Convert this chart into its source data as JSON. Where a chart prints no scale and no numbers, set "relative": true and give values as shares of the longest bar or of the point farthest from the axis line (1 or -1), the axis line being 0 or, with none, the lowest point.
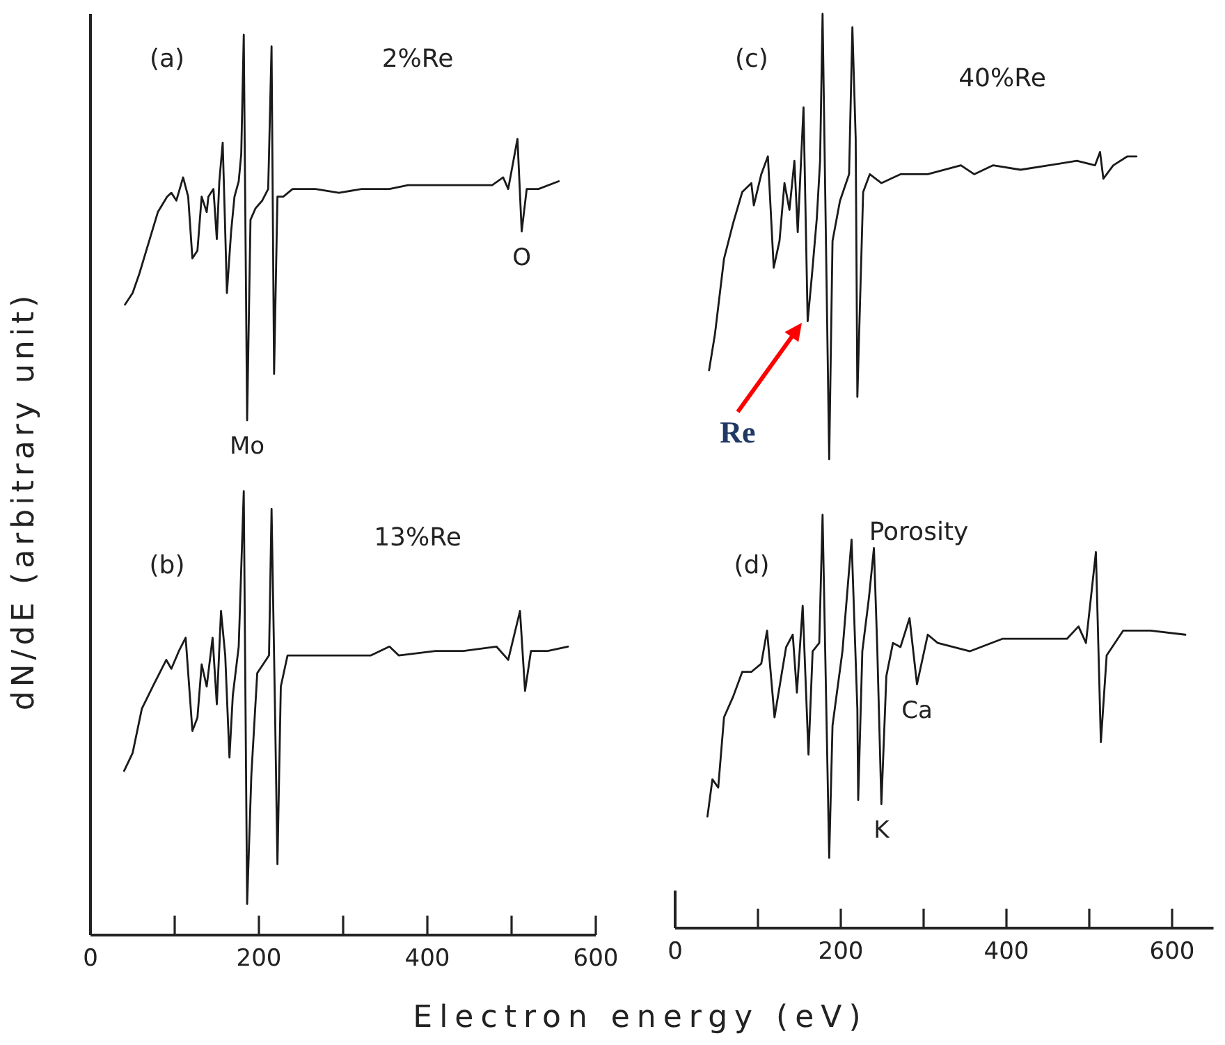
{
  "chart_data": [
    {
      "type": "line",
      "title": "(a)",
      "subtitle": "2%Re",
      "ylabel": "dN/dE (arbitrary unit)",
      "relative": true,
      "xlim": [
        0,
        600
      ],
      "tick_labels": false,
      "color": "#1a1a1a",
      "x": [
        41,
        50,
        58,
        69,
        80,
        91,
        96,
        102,
        110,
        116,
        121,
        127,
        132,
        138,
        140,
        146,
        150,
        153,
        157,
        160,
        162,
        167,
        171,
        176,
        179,
        182,
        186,
        190,
        196,
        204,
        211,
        212,
        215,
        218,
        222,
        229,
        240,
        267,
        295,
        322,
        355,
        377,
        432,
        477,
        490,
        496,
        507,
        512,
        518,
        532,
        556
      ],
      "values": [
        0.3,
        0.33,
        0.38,
        0.46,
        0.54,
        0.58,
        0.59,
        0.57,
        0.63,
        0.58,
        0.42,
        0.44,
        0.58,
        0.54,
        0.58,
        0.6,
        0.47,
        0.62,
        0.72,
        0.49,
        0.33,
        0.49,
        0.58,
        0.62,
        0.69,
        1,
        0,
        0.52,
        0.55,
        0.57,
        0.6,
        0.69,
        0.97,
        0.12,
        0.58,
        0.58,
        0.6,
        0.6,
        0.59,
        0.6,
        0.6,
        0.61,
        0.61,
        0.61,
        0.63,
        0.6,
        0.73,
        0.49,
        0.6,
        0.6,
        0.62
      ],
      "annotations": [
        {
          "text": "Mo",
          "x": 186,
          "y": 0
        },
        {
          "text": "O",
          "x": 512,
          "y": 0.49
        }
      ]
    },
    {
      "type": "line",
      "title": "(b)",
      "subtitle": "13%Re",
      "xlabel": "Electron energy (eV)",
      "relative": true,
      "xlim": [
        0,
        600
      ],
      "xticks": [
        0,
        {
          "value": 100,
          "label": null
        },
        200,
        {
          "value": 300,
          "label": null
        },
        400,
        {
          "value": 500,
          "label": null
        },
        600
      ],
      "color": "#1a1a1a",
      "x": [
        40,
        50,
        61,
        74,
        90,
        96,
        105,
        113,
        121,
        127,
        132,
        138,
        145,
        150,
        155,
        160,
        165,
        169,
        176,
        182,
        186,
        191,
        198,
        212,
        215,
        219,
        222,
        226,
        234,
        267,
        300,
        333,
        355,
        366,
        410,
        443,
        482,
        496,
        510,
        516,
        523,
        543,
        567
      ],
      "values": [
        0.37,
        0.41,
        0.51,
        0.56,
        0.62,
        0.6,
        0.64,
        0.67,
        0.46,
        0.49,
        0.61,
        0.56,
        0.67,
        0.52,
        0.73,
        0.63,
        0.4,
        0.54,
        0.65,
        1,
        0.07,
        0.36,
        0.59,
        0.63,
        0.96,
        0.52,
        0.16,
        0.56,
        0.63,
        0.63,
        0.63,
        0.63,
        0.65,
        0.63,
        0.64,
        0.64,
        0.65,
        0.62,
        0.73,
        0.55,
        0.64,
        0.64,
        0.65
      ]
    },
    {
      "type": "line",
      "title": "(c)",
      "subtitle": "40%Re",
      "relative": true,
      "xlim": [
        0,
        600
      ],
      "tick_labels": false,
      "color": "#1a1a1a",
      "x": [
        41,
        48,
        59,
        70,
        81,
        92,
        95,
        104,
        112,
        119,
        126,
        132,
        138,
        144,
        148,
        155,
        160,
        165,
        171,
        175,
        178,
        186,
        190,
        199,
        210,
        214,
        218,
        220,
        227,
        235,
        249,
        272,
        305,
        345,
        361,
        384,
        417,
        451,
        485,
        507,
        513,
        517,
        529,
        546,
        557
      ],
      "values": [
        0.2,
        0.28,
        0.45,
        0.53,
        0.6,
        0.62,
        0.57,
        0.64,
        0.68,
        0.43,
        0.49,
        0.62,
        0.56,
        0.67,
        0.51,
        0.79,
        0.31,
        0.41,
        0.54,
        0.67,
        1,
        0,
        0.49,
        0.58,
        0.64,
        0.97,
        0.72,
        0.14,
        0.6,
        0.64,
        0.62,
        0.64,
        0.64,
        0.66,
        0.64,
        0.66,
        0.65,
        0.66,
        0.67,
        0.66,
        0.69,
        0.63,
        0.66,
        0.68,
        0.68
      ],
      "annotations": [
        "Re"
      ]
    },
    {
      "type": "line",
      "title": "(d)",
      "subtitle": "Porosity",
      "relative": true,
      "xlim": [
        0,
        650
      ],
      "xticks": [
        0,
        {
          "value": 100,
          "label": null
        },
        200,
        {
          "value": 300,
          "label": null
        },
        400,
        {
          "value": 500,
          "label": null
        },
        600
      ],
      "color": "#1a1a1a",
      "x": [
        39,
        45,
        52,
        59,
        70,
        81,
        92,
        104,
        111,
        120,
        129,
        134,
        142,
        147,
        154,
        161,
        166,
        174,
        178,
        186,
        190,
        202,
        213,
        220,
        221,
        226,
        234,
        240,
        244,
        249,
        255,
        263,
        272,
        283,
        292,
        305,
        317,
        356,
        395,
        440,
        473,
        487,
        496,
        508,
        514,
        521,
        541,
        574,
        616
      ],
      "values": [
        0.27,
        0.36,
        0.34,
        0.51,
        0.56,
        0.62,
        0.62,
        0.64,
        0.72,
        0.51,
        0.62,
        0.68,
        0.71,
        0.57,
        0.78,
        0.42,
        0.67,
        0.69,
        1,
        0.17,
        0.49,
        0.67,
        0.94,
        0.53,
        0.31,
        0.67,
        0.8,
        0.92,
        0.68,
        0.3,
        0.61,
        0.69,
        0.68,
        0.75,
        0.59,
        0.71,
        0.69,
        0.67,
        0.7,
        0.7,
        0.7,
        0.73,
        0.69,
        0.91,
        0.45,
        0.66,
        0.72,
        0.72,
        0.71
      ],
      "annotations": [
        {
          "text": "K",
          "x": 249,
          "y": 0.3
        },
        {
          "text": "Ca",
          "x": 292,
          "y": 0.59
        }
      ]
    }
  ]
}
